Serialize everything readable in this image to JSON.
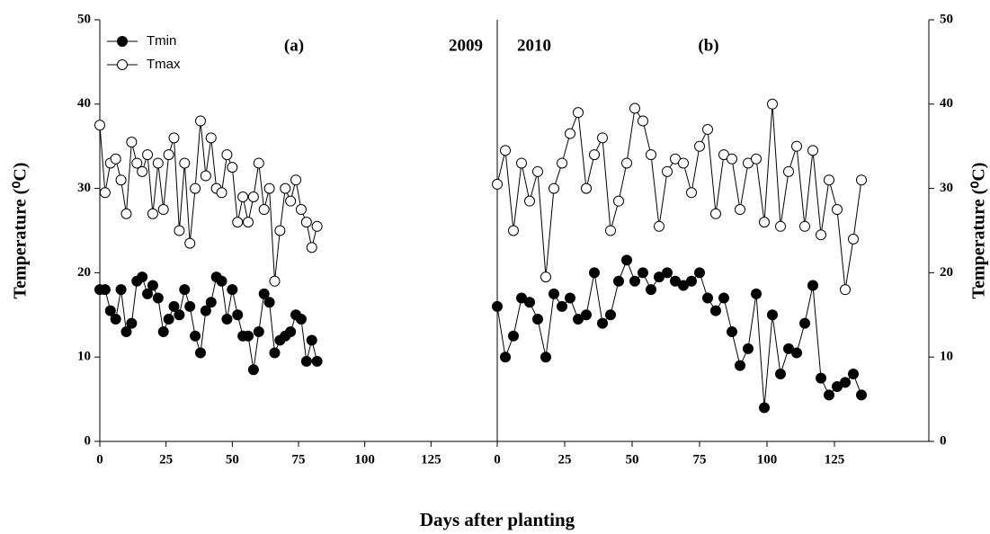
{
  "chart_data": [
    {
      "type": "line",
      "panel_label": "(a)",
      "year_label": "2009",
      "ylabel": "Temperature (⁰C)",
      "xlabel": "Days after planting",
      "legend": "upper left",
      "y_axis_side": "left",
      "xlim": [
        0,
        150
      ],
      "xticks": [
        0,
        25,
        50,
        75,
        100,
        125
      ],
      "ylim": [
        0,
        50
      ],
      "yticks": [
        0,
        10,
        20,
        30,
        40,
        50
      ],
      "x": [
        0,
        2,
        4,
        6,
        8,
        10,
        12,
        14,
        16,
        18,
        20,
        22,
        24,
        26,
        28,
        30,
        32,
        34,
        36,
        38,
        40,
        42,
        44,
        46,
        48,
        50,
        52,
        54,
        56,
        58,
        60,
        62,
        64,
        66,
        68,
        70,
        72,
        74,
        76,
        78,
        80,
        82
      ],
      "series": [
        {
          "name": "Tmin",
          "color": "#000000",
          "marker_fill": "#000000",
          "values": [
            18,
            18,
            15.5,
            14.5,
            18,
            13,
            14,
            19,
            19.5,
            17.5,
            18.5,
            17,
            13,
            14.5,
            16,
            15,
            18,
            16,
            12.5,
            10.5,
            15.5,
            16.5,
            19.5,
            19,
            14.5,
            18,
            15,
            12.5,
            12.5,
            8.5,
            13,
            17.5,
            16.5,
            10.5,
            12,
            12.5,
            13,
            15,
            14.5,
            9.5,
            12,
            9.5
          ]
        },
        {
          "name": "Tmax",
          "color": "#000000",
          "marker_fill": "#ffffff",
          "values": [
            37.5,
            29.5,
            33,
            33.5,
            31,
            27,
            35.5,
            33,
            32,
            34,
            27,
            33,
            27.5,
            34,
            36,
            25,
            33,
            23.5,
            30,
            38,
            31.5,
            36,
            30,
            29.5,
            34,
            32.5,
            26,
            29,
            26,
            29,
            33,
            27.5,
            30,
            19,
            25,
            30,
            28.5,
            31,
            27.5,
            26,
            23,
            25.5
          ]
        }
      ]
    },
    {
      "type": "line",
      "panel_label": "(b)",
      "year_label": "2010",
      "ylabel": "Temperature (⁰C)",
      "y_axis_side": "right",
      "xlim": [
        0,
        160
      ],
      "xticks": [
        0,
        25,
        50,
        75,
        100,
        125
      ],
      "ylim": [
        0,
        50
      ],
      "yticks": [
        0,
        10,
        20,
        30,
        40,
        50
      ],
      "x": [
        0,
        3,
        6,
        9,
        12,
        15,
        18,
        21,
        24,
        27,
        30,
        33,
        36,
        39,
        42,
        45,
        48,
        51,
        54,
        57,
        60,
        63,
        66,
        69,
        72,
        75,
        78,
        81,
        84,
        87,
        90,
        93,
        96,
        99,
        102,
        105,
        108,
        111,
        114,
        117,
        120,
        123,
        126,
        129,
        132,
        135
      ],
      "series": [
        {
          "color": "#000000",
          "marker_fill": "#000000",
          "values": [
            16,
            10,
            12.5,
            17,
            16.5,
            14.5,
            10,
            17.5,
            16,
            17,
            14.5,
            15,
            20,
            14,
            15,
            19,
            21.5,
            19,
            20,
            18,
            19.5,
            20,
            19,
            18.5,
            19,
            20,
            17,
            15.5,
            17,
            13,
            9,
            11,
            17.5,
            4,
            15,
            8,
            11,
            10.5,
            14,
            18.5,
            7.5,
            5.5,
            6.5,
            7,
            8,
            5.5
          ]
        },
        {
          "color": "#000000",
          "marker_fill": "#ffffff",
          "values": [
            30.5,
            34.5,
            25,
            33,
            28.5,
            32,
            19.5,
            30,
            33,
            36.5,
            39,
            30,
            34,
            36,
            25,
            28.5,
            33,
            39.5,
            38,
            34,
            25.5,
            32,
            33.5,
            33,
            29.5,
            35,
            37,
            27,
            34,
            33.5,
            27.5,
            33,
            33.5,
            26,
            40,
            25.5,
            32,
            35,
            25.5,
            34.5,
            24.5,
            31,
            27.5,
            18,
            24,
            31
          ]
        }
      ]
    }
  ]
}
